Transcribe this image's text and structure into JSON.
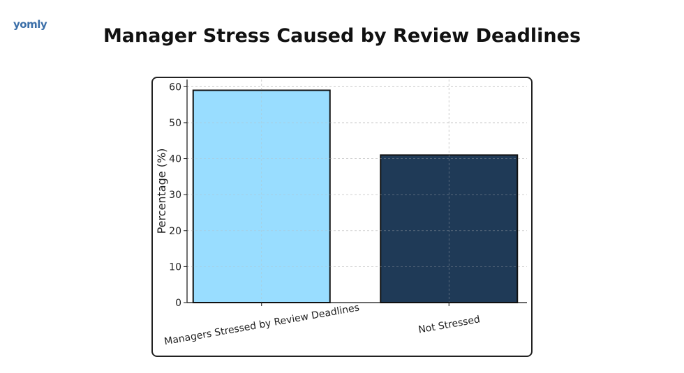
{
  "brand": {
    "logo_text": "yomly"
  },
  "chart_data": {
    "type": "bar",
    "title": "Manager Stress Caused by Review Deadlines",
    "categories": [
      "Managers Stressed by Review Deadlines",
      "Not Stressed"
    ],
    "values": [
      59,
      41
    ],
    "colors": [
      "#99ddff",
      "#1f3a57"
    ],
    "xlabel": "",
    "ylabel": "Percentage (%)",
    "ylim": [
      0,
      62
    ],
    "yticks": [
      0,
      10,
      20,
      30,
      40,
      50,
      60
    ],
    "grid": true,
    "legend": "none"
  }
}
